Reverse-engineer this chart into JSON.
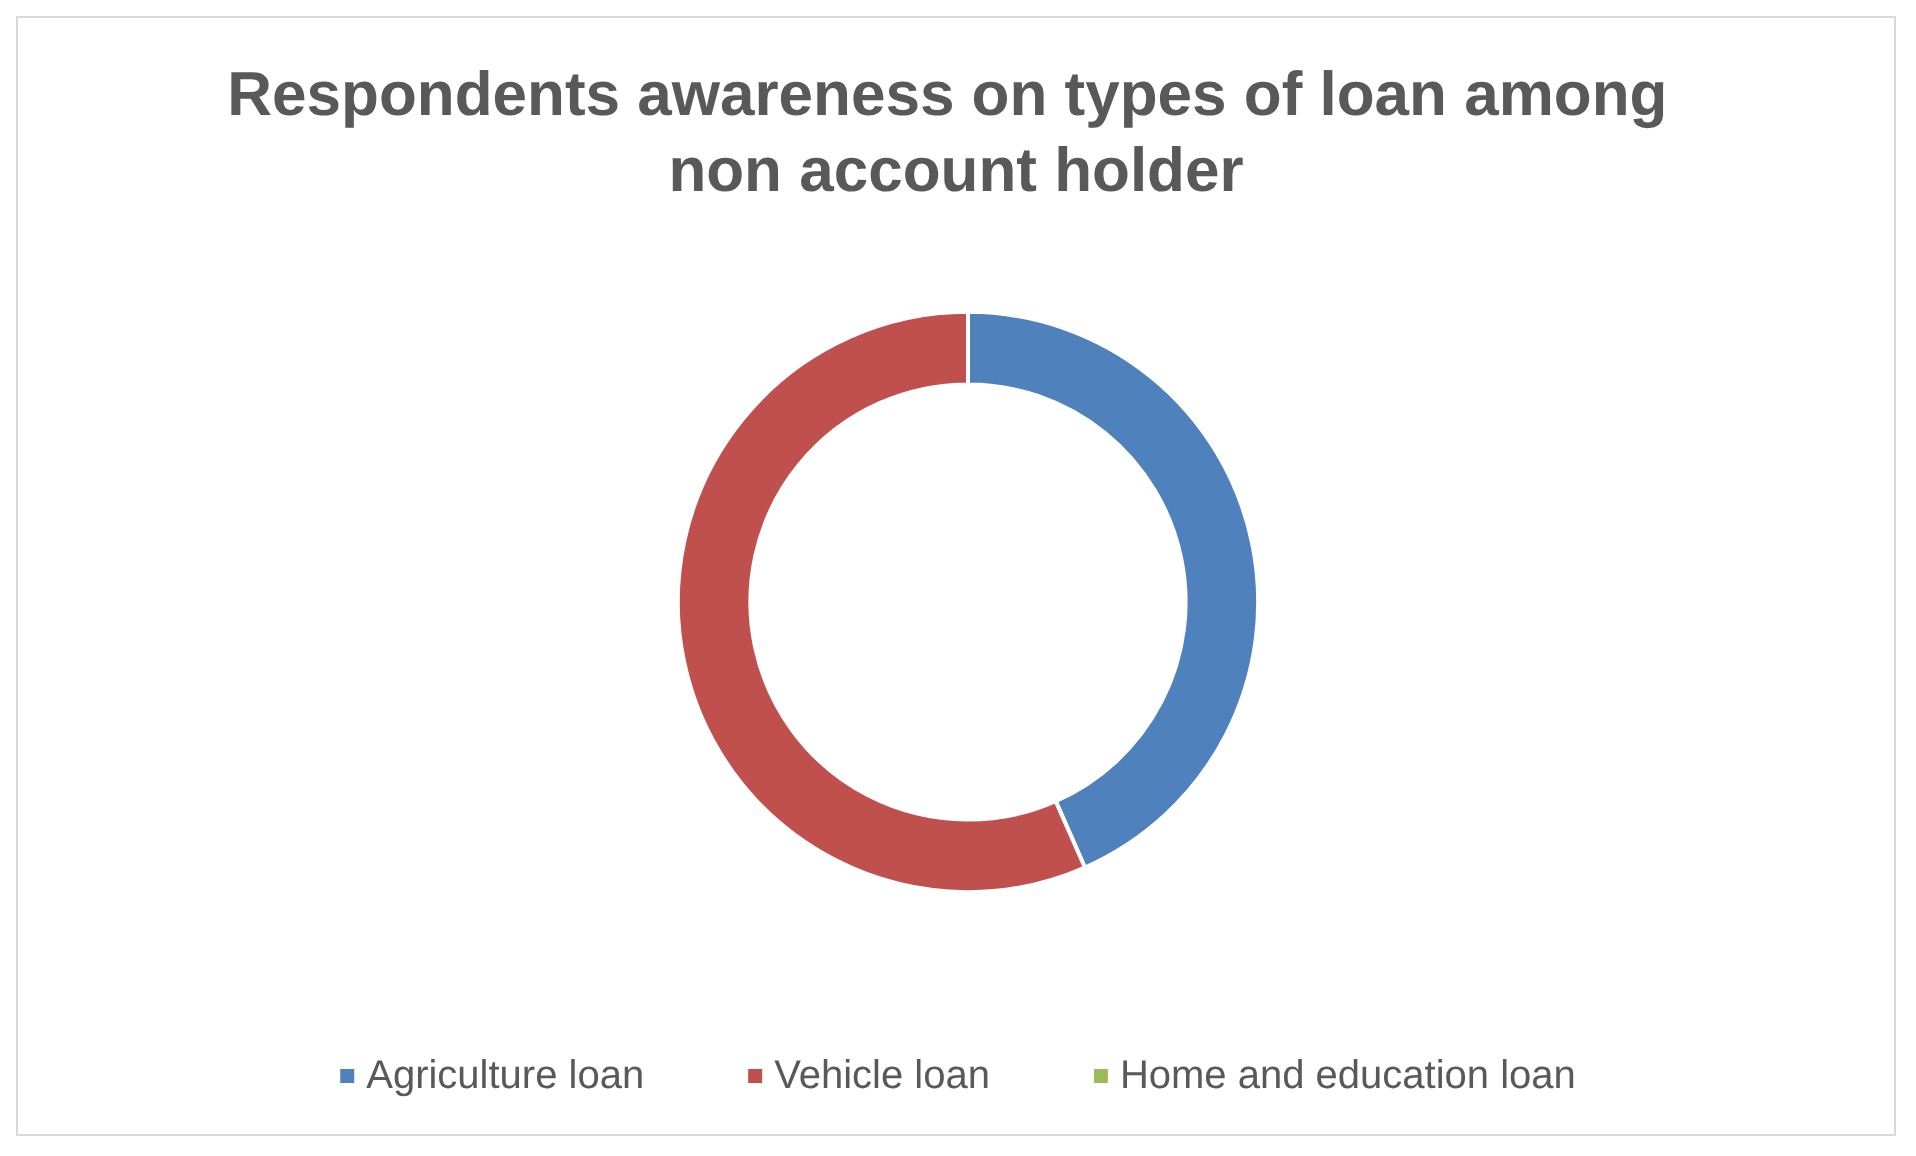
{
  "chart_data": {
    "type": "donut",
    "title": "Respondents awareness on types of loan among non account holder",
    "categories": [
      "Agriculture loan",
      "Vehicle loan",
      "Home and education loan"
    ],
    "values": [
      43.4,
      56.6,
      0
    ],
    "colors": [
      "#4f81bd",
      "#c0504d",
      "#9bbb59"
    ],
    "legend": "bottom"
  }
}
